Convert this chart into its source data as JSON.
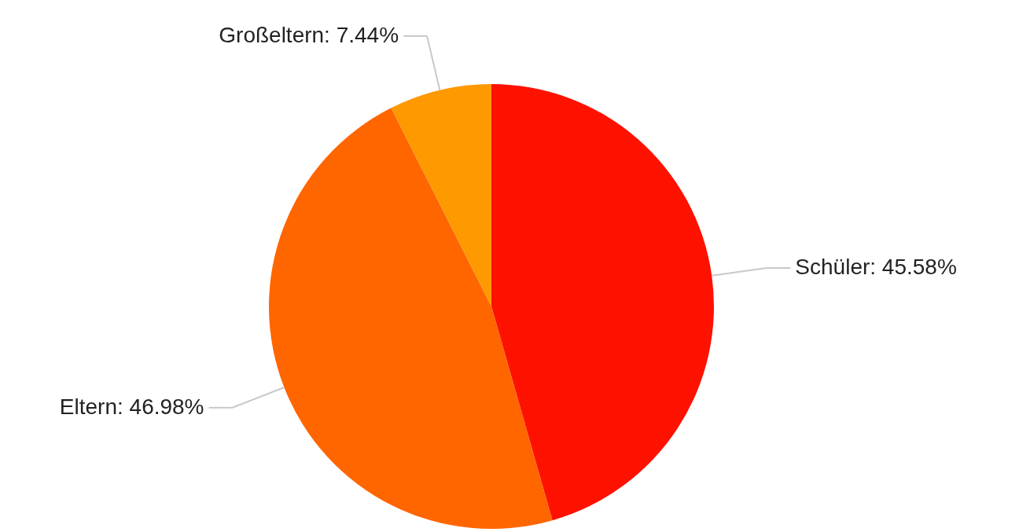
{
  "chart_data": {
    "type": "pie",
    "categories": [
      "Schüler",
      "Eltern",
      "Großeltern"
    ],
    "values": [
      45.58,
      46.98,
      7.44
    ],
    "colors": [
      "#ff1100",
      "#ff6600",
      "#ff9900"
    ],
    "value_labels": [
      "45.58%",
      "46.98%",
      "7.44%"
    ]
  }
}
